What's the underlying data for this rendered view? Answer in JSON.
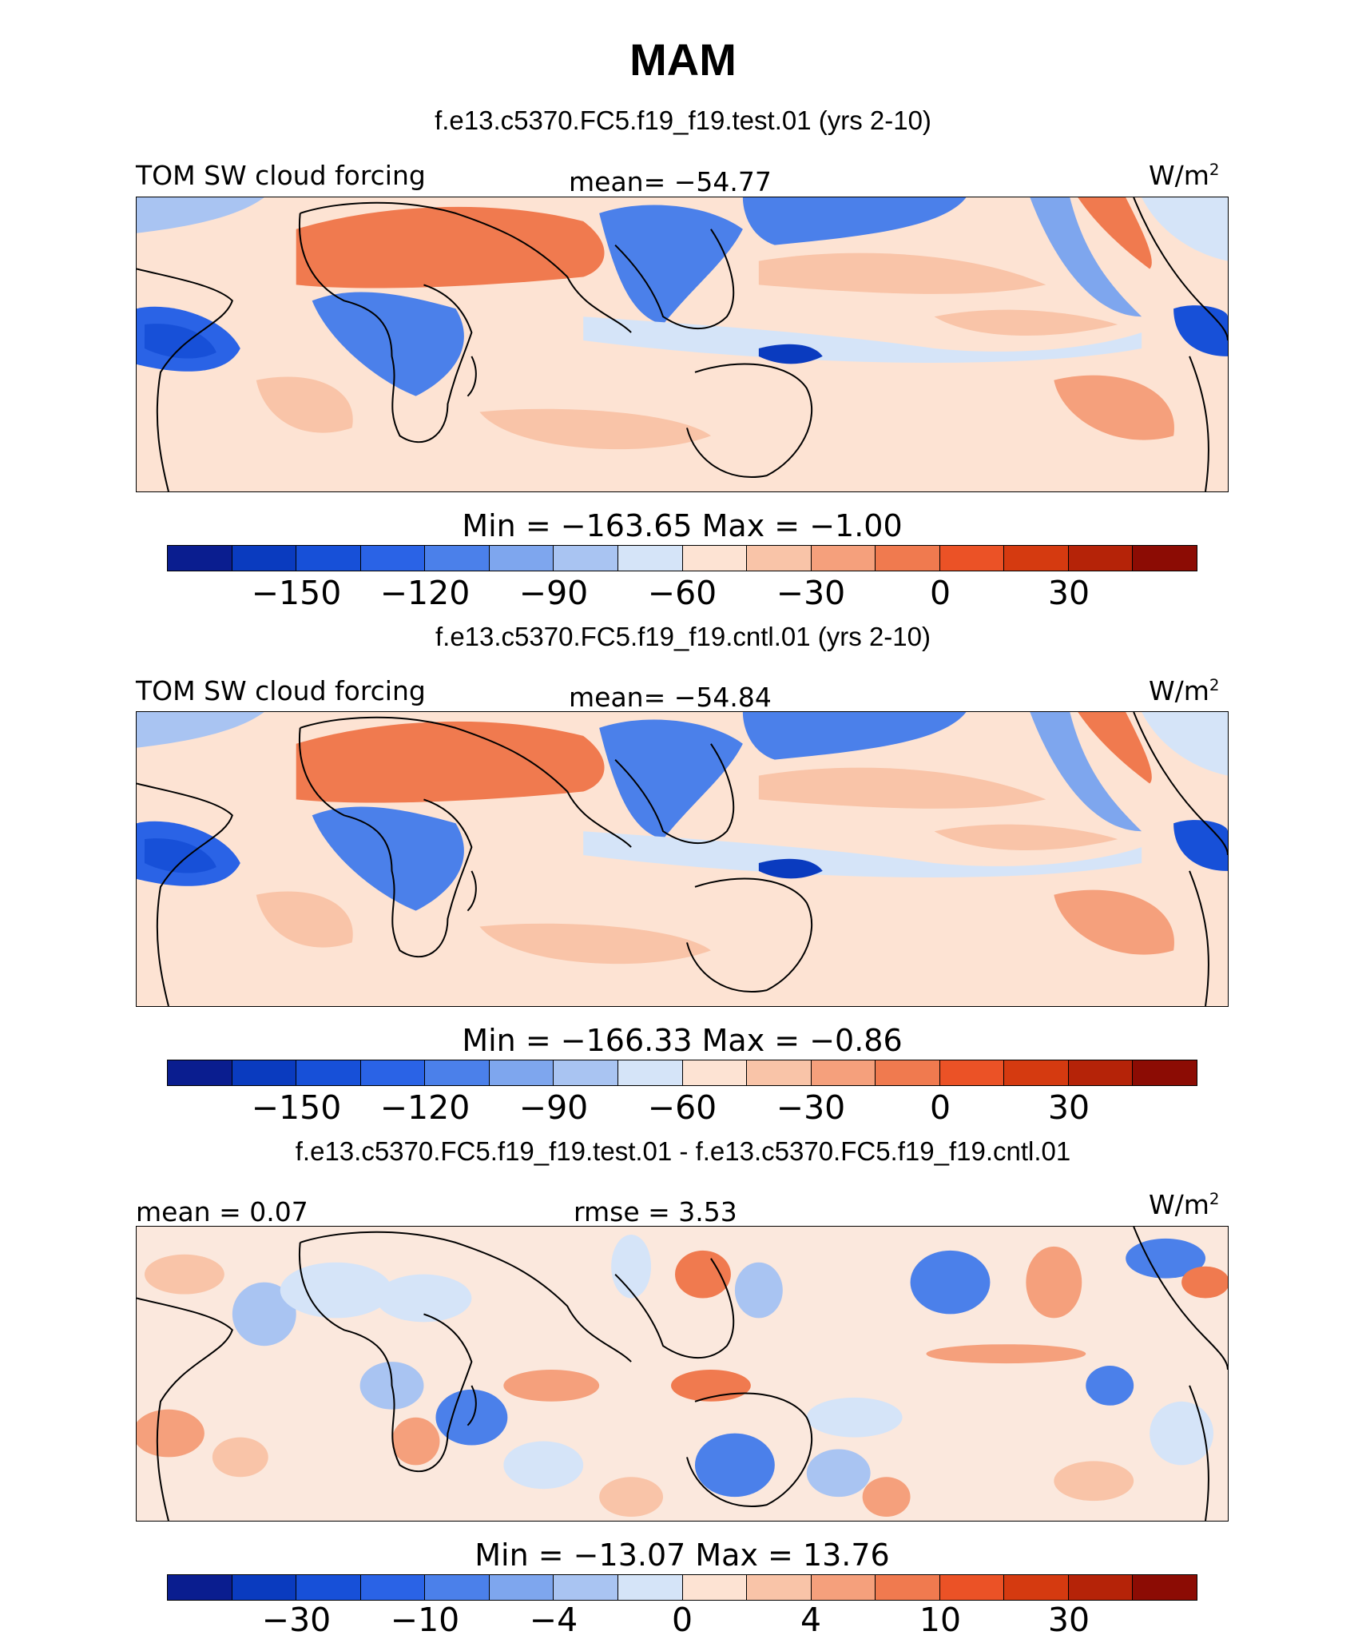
{
  "title": "MAM",
  "units": "W/m",
  "units_sup": "2",
  "panels": [
    {
      "case": "f.e13.c5370.FC5.f19_f19.test.01 (yrs 2-10)",
      "variable": "TOM SW cloud forcing",
      "mean_label": "mean= −54.77",
      "minmax": "Min = −163.65 Max =  −1.00",
      "ticks": [
        "−150",
        "−120",
        "−90",
        "−60",
        "−30",
        "0",
        "30"
      ]
    },
    {
      "case": "f.e13.c5370.FC5.f19_f19.cntl.01 (yrs 2-10)",
      "variable": "TOM SW cloud forcing",
      "mean_label": "mean= −54.84",
      "minmax": "Min = −166.33 Max =  −0.86",
      "ticks": [
        "−150",
        "−120",
        "−90",
        "−60",
        "−30",
        "0",
        "30"
      ]
    },
    {
      "case": "f.e13.c5370.FC5.f19_f19.test.01 - f.e13.c5370.FC5.f19_f19.cntl.01",
      "mean_label": "mean =   0.07",
      "rmse_label": "rmse =   3.53",
      "minmax": "Min = −13.07 Max =  13.76",
      "ticks": [
        "−30",
        "−10",
        "−4",
        "0",
        "4",
        "10",
        "30"
      ]
    }
  ],
  "colors": {
    "colorbar": [
      "#0a1d8f",
      "#0a3bbf",
      "#1750d8",
      "#2a63e6",
      "#4b80ea",
      "#7ea6ee",
      "#a9c4f2",
      "#d5e4f8",
      "#fde3d3",
      "#f9c4a8",
      "#f5a07c",
      "#f07a4f",
      "#eb5226",
      "#d53a10",
      "#b52308",
      "#8c0c04"
    ],
    "land": "#000000"
  }
}
